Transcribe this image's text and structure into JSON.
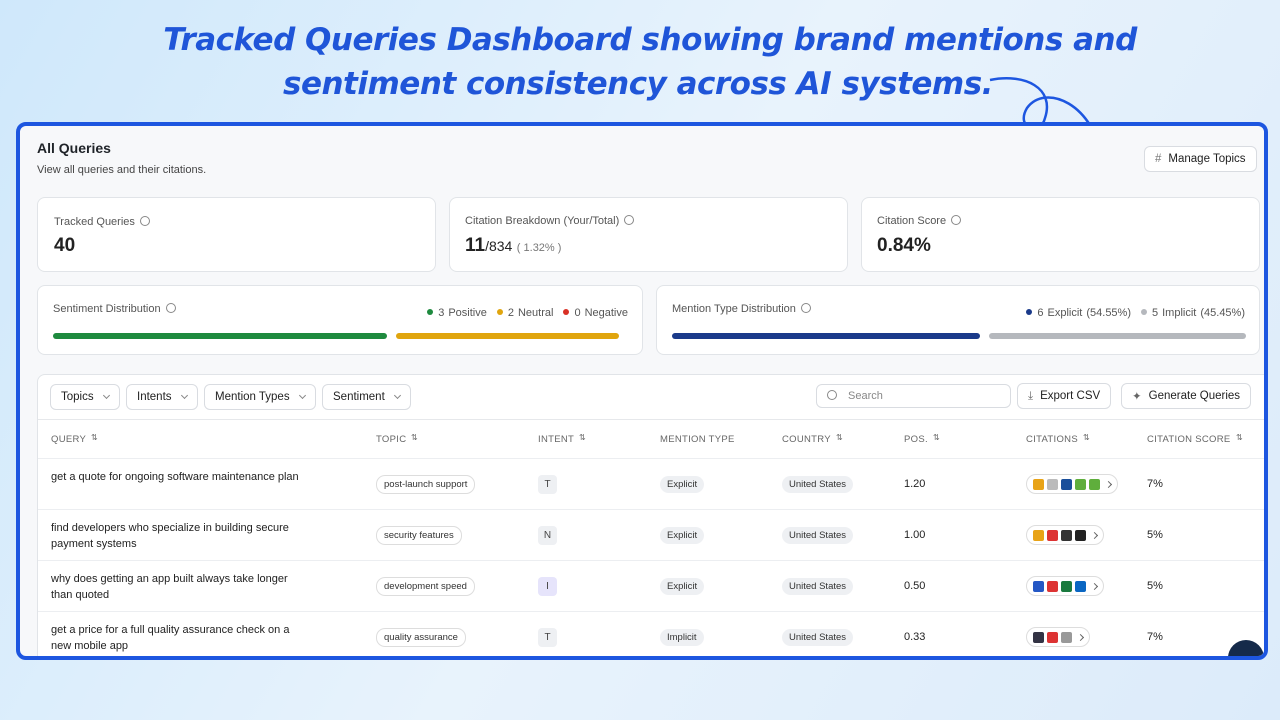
{
  "headline": {
    "lines": [
      "Tracked Queries Dashboard showing brand mentions and",
      "sentiment consistency across AI systems."
    ]
  },
  "header": {
    "title": "All Queries",
    "subtitle": "View all queries and their citations.",
    "button": "Manage Topics"
  },
  "stats": [
    {
      "label": "Tracked Queries",
      "value": "40"
    },
    {
      "label": "Citation Breakdown (Your/Total)",
      "value": "11",
      "total": "/834",
      "percent": "( 1.32% )"
    },
    {
      "label": "Citation Score",
      "value": "0.84%"
    }
  ],
  "sentiment": {
    "title": "Sentiment Distribution",
    "items": [
      {
        "count": 3,
        "label": "Positive",
        "color": "#1e8a3e"
      },
      {
        "count": 2,
        "label": "Neutral",
        "color": "#e0a50e"
      },
      {
        "count": 0,
        "label": "Negative",
        "color": "#d93025"
      }
    ]
  },
  "mention_types": {
    "title": "Mention Type Distribution",
    "items": [
      {
        "count": 6,
        "label": "Explicit",
        "percent": "(54.55%)",
        "color": "#1a3a8a"
      },
      {
        "count": 5,
        "label": "Implicit",
        "percent": "(45.45%)",
        "color": "#b5b8bd"
      }
    ]
  },
  "filters": [
    "Topics",
    "Intents",
    "Mention Types",
    "Sentiment"
  ],
  "search_placeholder": "Search",
  "actions": [
    "Export CSV",
    "Generate Queries"
  ],
  "table": {
    "columns": [
      "QUERY",
      "TOPIC",
      "INTENT",
      "MENTION TYPE",
      "COUNTRY",
      "POS.",
      "CITATIONS",
      "CITATION SCORE"
    ],
    "rows": [
      {
        "query": "get a quote for ongoing software maintenance plan",
        "topic": "post-launch support",
        "intent": "T",
        "mention_type": "Explicit",
        "country": "United States",
        "pos": "1.20",
        "citation_score": "7%"
      },
      {
        "query": "find developers who specialize in building secure payment systems",
        "topic": "security features",
        "intent": "N",
        "mention_type": "Explicit",
        "country": "United States",
        "pos": "1.00",
        "citation_score": "5%"
      },
      {
        "query": "why does getting an app built always take longer than quoted",
        "topic": "development speed",
        "intent": "I",
        "mention_type": "Explicit",
        "country": "United States",
        "pos": "0.50",
        "citation_score": "5%"
      },
      {
        "query": "get a price for a full quality assurance check on a new mobile app",
        "topic": "quality assurance",
        "intent": "T",
        "mention_type": "Implicit",
        "country": "United States",
        "pos": "0.33",
        "citation_score": "7%"
      }
    ]
  }
}
